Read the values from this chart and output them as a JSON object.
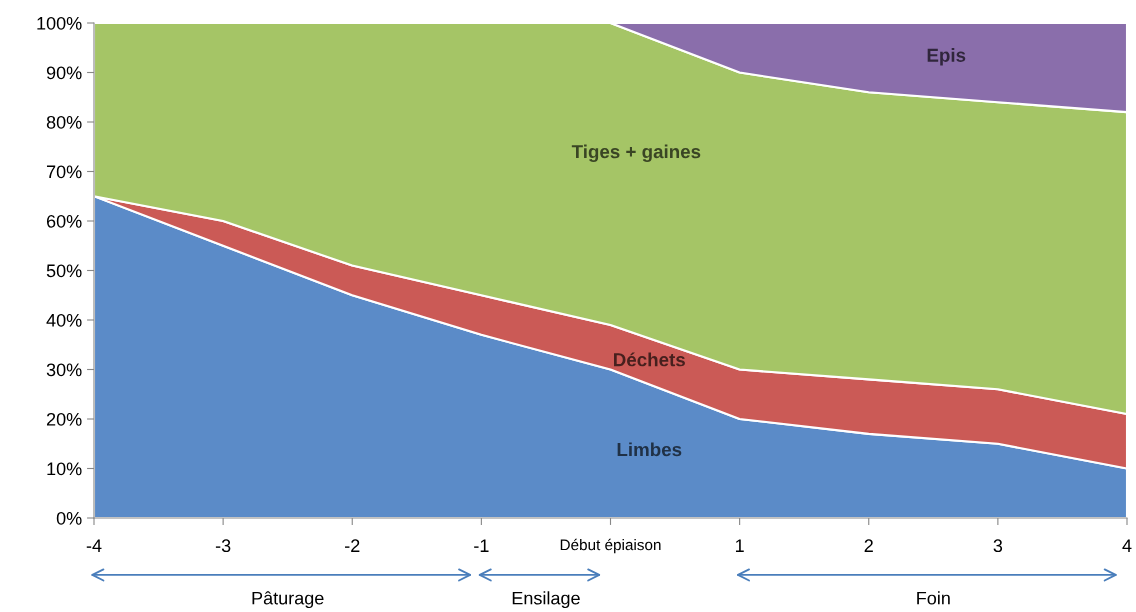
{
  "chart_data": {
    "type": "area",
    "stacked": true,
    "categories": [
      "-4",
      "-3",
      "-2",
      "-1",
      "Début épiaison",
      "1",
      "2",
      "3",
      "4"
    ],
    "series": [
      {
        "name": "Limbes",
        "color": "#5b8bc8",
        "values": [
          65,
          55,
          45,
          37,
          30,
          20,
          17,
          15,
          10
        ]
      },
      {
        "name": "Déchets",
        "color": "#cb5a56",
        "values": [
          0,
          5,
          6,
          8,
          9,
          10,
          11,
          11,
          11
        ]
      },
      {
        "name": "Tiges + gaines",
        "color": "#a5c566",
        "values": [
          35,
          40,
          49,
          55,
          61,
          60,
          58,
          58,
          61
        ]
      },
      {
        "name": "Epis",
        "color": "#8a6eab",
        "values": [
          0,
          0,
          0,
          0,
          0,
          10,
          14,
          16,
          18
        ]
      }
    ],
    "ylim": [
      0,
      100
    ],
    "yticks": [
      {
        "value": 0,
        "label": "0%"
      },
      {
        "value": 10,
        "label": "10%"
      },
      {
        "value": 20,
        "label": "20%"
      },
      {
        "value": 30,
        "label": "30%"
      },
      {
        "value": 40,
        "label": "40%"
      },
      {
        "value": 50,
        "label": "50%"
      },
      {
        "value": 60,
        "label": "60%"
      },
      {
        "value": 70,
        "label": "70%"
      },
      {
        "value": 80,
        "label": "80%"
      },
      {
        "value": 90,
        "label": "90%"
      },
      {
        "value": 100,
        "label": "100%"
      }
    ],
    "grid": false,
    "legend": false,
    "annotations": [
      "Pâturage",
      "Ensilage",
      "Foin"
    ]
  }
}
